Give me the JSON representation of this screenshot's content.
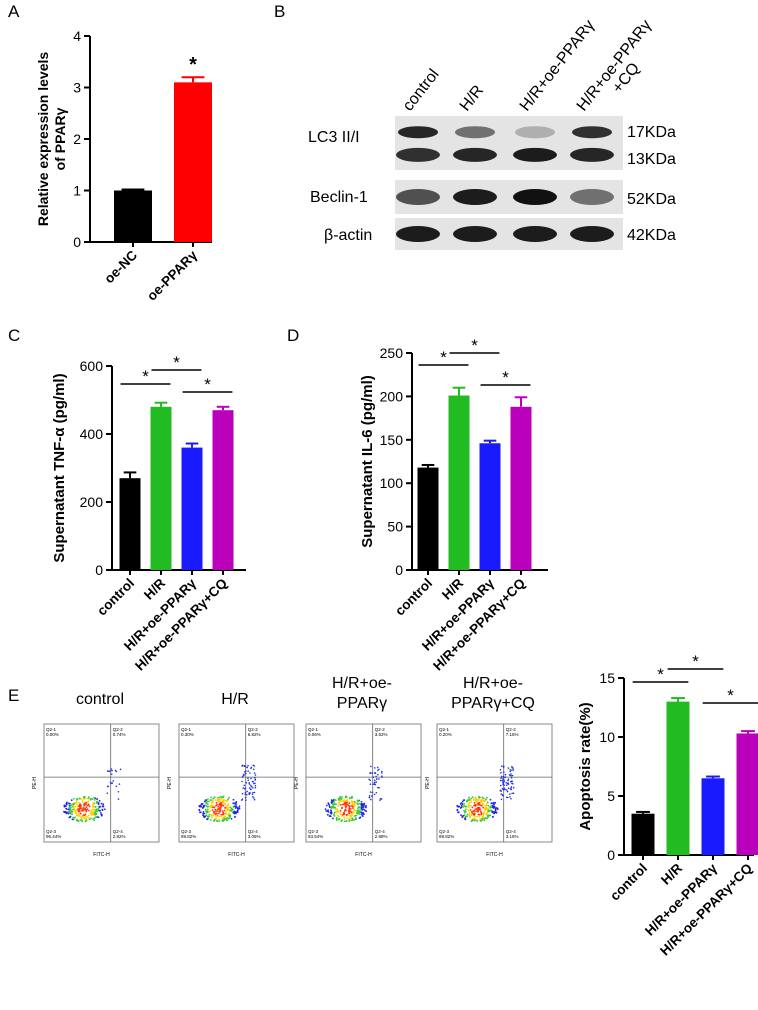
{
  "panels": {
    "A": "A",
    "B": "B",
    "C": "C",
    "D": "D",
    "E": "E"
  },
  "blot": {
    "lanes": [
      "control",
      "H/R",
      "H/R+oe-PPARγ",
      "H/R+oe-PPARγ\n+CQ"
    ],
    "rows": [
      {
        "label": "LC3 II/I",
        "bands": [
          "17KDa",
          "13KDa"
        ]
      },
      {
        "label": "Beclin-1",
        "bands": [
          "52KDa"
        ]
      },
      {
        "label": "β-actin",
        "bands": [
          "42KDa"
        ]
      }
    ],
    "lc3_upper_intensity": [
      0.9,
      0.55,
      0.25,
      0.85
    ],
    "lc3_lower_intensity": [
      0.85,
      0.9,
      0.95,
      0.9
    ],
    "beclin_intensity": [
      0.7,
      0.95,
      1.0,
      0.55
    ],
    "actin_intensity": [
      0.95,
      0.95,
      0.95,
      0.95
    ]
  },
  "flow": {
    "titles": [
      "control",
      "H/R",
      "H/R+oe-\nPPARγ",
      "H/R+oe-\nPPARγ+CQ"
    ],
    "quadrants": [
      {
        "q1": "Q2-1\n0.00%",
        "q2": "Q2-2\n0.74%",
        "q3": "Q2-3\n96.44%",
        "q4": "Q2-4\n2.82%"
      },
      {
        "q1": "Q2-1\n0.30%",
        "q2": "Q2-2\n6.82%",
        "q3": "Q2-3\n89.82%",
        "q4": "Q2-4\n3.06%"
      },
      {
        "q1": "Q2-1\n0.06%",
        "q2": "Q2-2\n3.52%",
        "q3": "Q2-3\n93.54%",
        "q4": "Q2-4\n2.88%"
      },
      {
        "q1": "Q2-1\n0.20%",
        "q2": "Q2-2\n7.15%",
        "q3": "Q2-3\n89.82%",
        "q4": "Q2-4\n3.16%"
      }
    ],
    "xlabel": "FITC-H",
    "ylabel": "PE-H"
  },
  "chart_data": [
    {
      "id": "A",
      "type": "bar",
      "categories": [
        "oe-NC",
        "oe-PPARγ"
      ],
      "values": [
        1.0,
        3.1
      ],
      "errors": [
        0.02,
        0.1
      ],
      "colors": [
        "#000000",
        "#ff0000"
      ],
      "ylabel": "Relative expression levels\nof PPARγ",
      "ylim": [
        0,
        4
      ],
      "yticks": [
        0,
        1,
        2,
        3,
        4
      ],
      "annotations": [
        {
          "bar": 1,
          "text": "*"
        }
      ]
    },
    {
      "id": "C",
      "type": "bar",
      "categories": [
        "control",
        "H/R",
        "H/R+oe-PPARγ",
        "H/R+oe-PPARγ+CQ"
      ],
      "values": [
        270,
        480,
        360,
        470
      ],
      "errors": [
        17,
        12,
        12,
        10
      ],
      "colors": [
        "#000000",
        "#22bb22",
        "#1a1aff",
        "#bb00bb"
      ],
      "ylabel": "Supernatant TNF-α (pg/ml)",
      "ylim": [
        0,
        600
      ],
      "yticks": [
        0,
        200,
        400,
        600
      ],
      "significance": [
        {
          "from": 0,
          "to": 1,
          "text": "*"
        },
        {
          "from": 1,
          "to": 2,
          "text": "*"
        },
        {
          "from": 2,
          "to": 3,
          "text": "*"
        }
      ]
    },
    {
      "id": "D",
      "type": "bar",
      "categories": [
        "control",
        "H/R",
        "H/R+oe-PPARγ",
        "H/R+oe-PPARγ+CQ"
      ],
      "values": [
        118,
        201,
        146,
        188
      ],
      "errors": [
        3,
        9,
        3,
        11
      ],
      "colors": [
        "#000000",
        "#22bb22",
        "#1a1aff",
        "#bb00bb"
      ],
      "ylabel": "Supernatant IL-6 (pg/ml)",
      "ylim": [
        0,
        250
      ],
      "yticks": [
        0,
        50,
        100,
        150,
        200,
        250
      ],
      "significance": [
        {
          "from": 0,
          "to": 1,
          "text": "*"
        },
        {
          "from": 1,
          "to": 2,
          "text": "*"
        },
        {
          "from": 2,
          "to": 3,
          "text": "*"
        }
      ]
    },
    {
      "id": "E",
      "type": "bar",
      "categories": [
        "control",
        "H/R",
        "H/R+oe-PPARγ",
        "H/R+oe-PPARγ+CQ"
      ],
      "values": [
        3.5,
        13.0,
        6.5,
        10.3
      ],
      "errors": [
        0.15,
        0.3,
        0.15,
        0.2
      ],
      "colors": [
        "#000000",
        "#22bb22",
        "#1a1aff",
        "#bb00bb"
      ],
      "ylabel": "Apoptosis rate(%)",
      "ylim": [
        0,
        15
      ],
      "yticks": [
        0,
        5,
        10,
        15
      ],
      "significance": [
        {
          "from": 0,
          "to": 1,
          "text": "*"
        },
        {
          "from": 1,
          "to": 2,
          "text": "*"
        },
        {
          "from": 2,
          "to": 3,
          "text": "*"
        }
      ]
    }
  ]
}
